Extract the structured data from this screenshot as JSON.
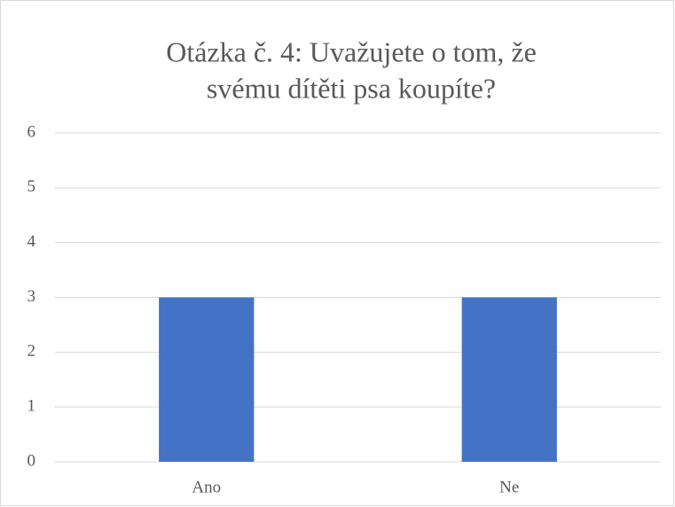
{
  "chart_data": {
    "type": "bar",
    "title": [
      "Otázka č. 4: Uvažujete o tom, že",
      "svému dítěti psa koupíte?"
    ],
    "categories": [
      "Ano",
      "Ne"
    ],
    "values": [
      3,
      3
    ],
    "color": "#4472c4",
    "ylim": [
      0,
      6
    ],
    "yticks": [
      0,
      1,
      2,
      3,
      4,
      5,
      6
    ],
    "grid": true
  }
}
